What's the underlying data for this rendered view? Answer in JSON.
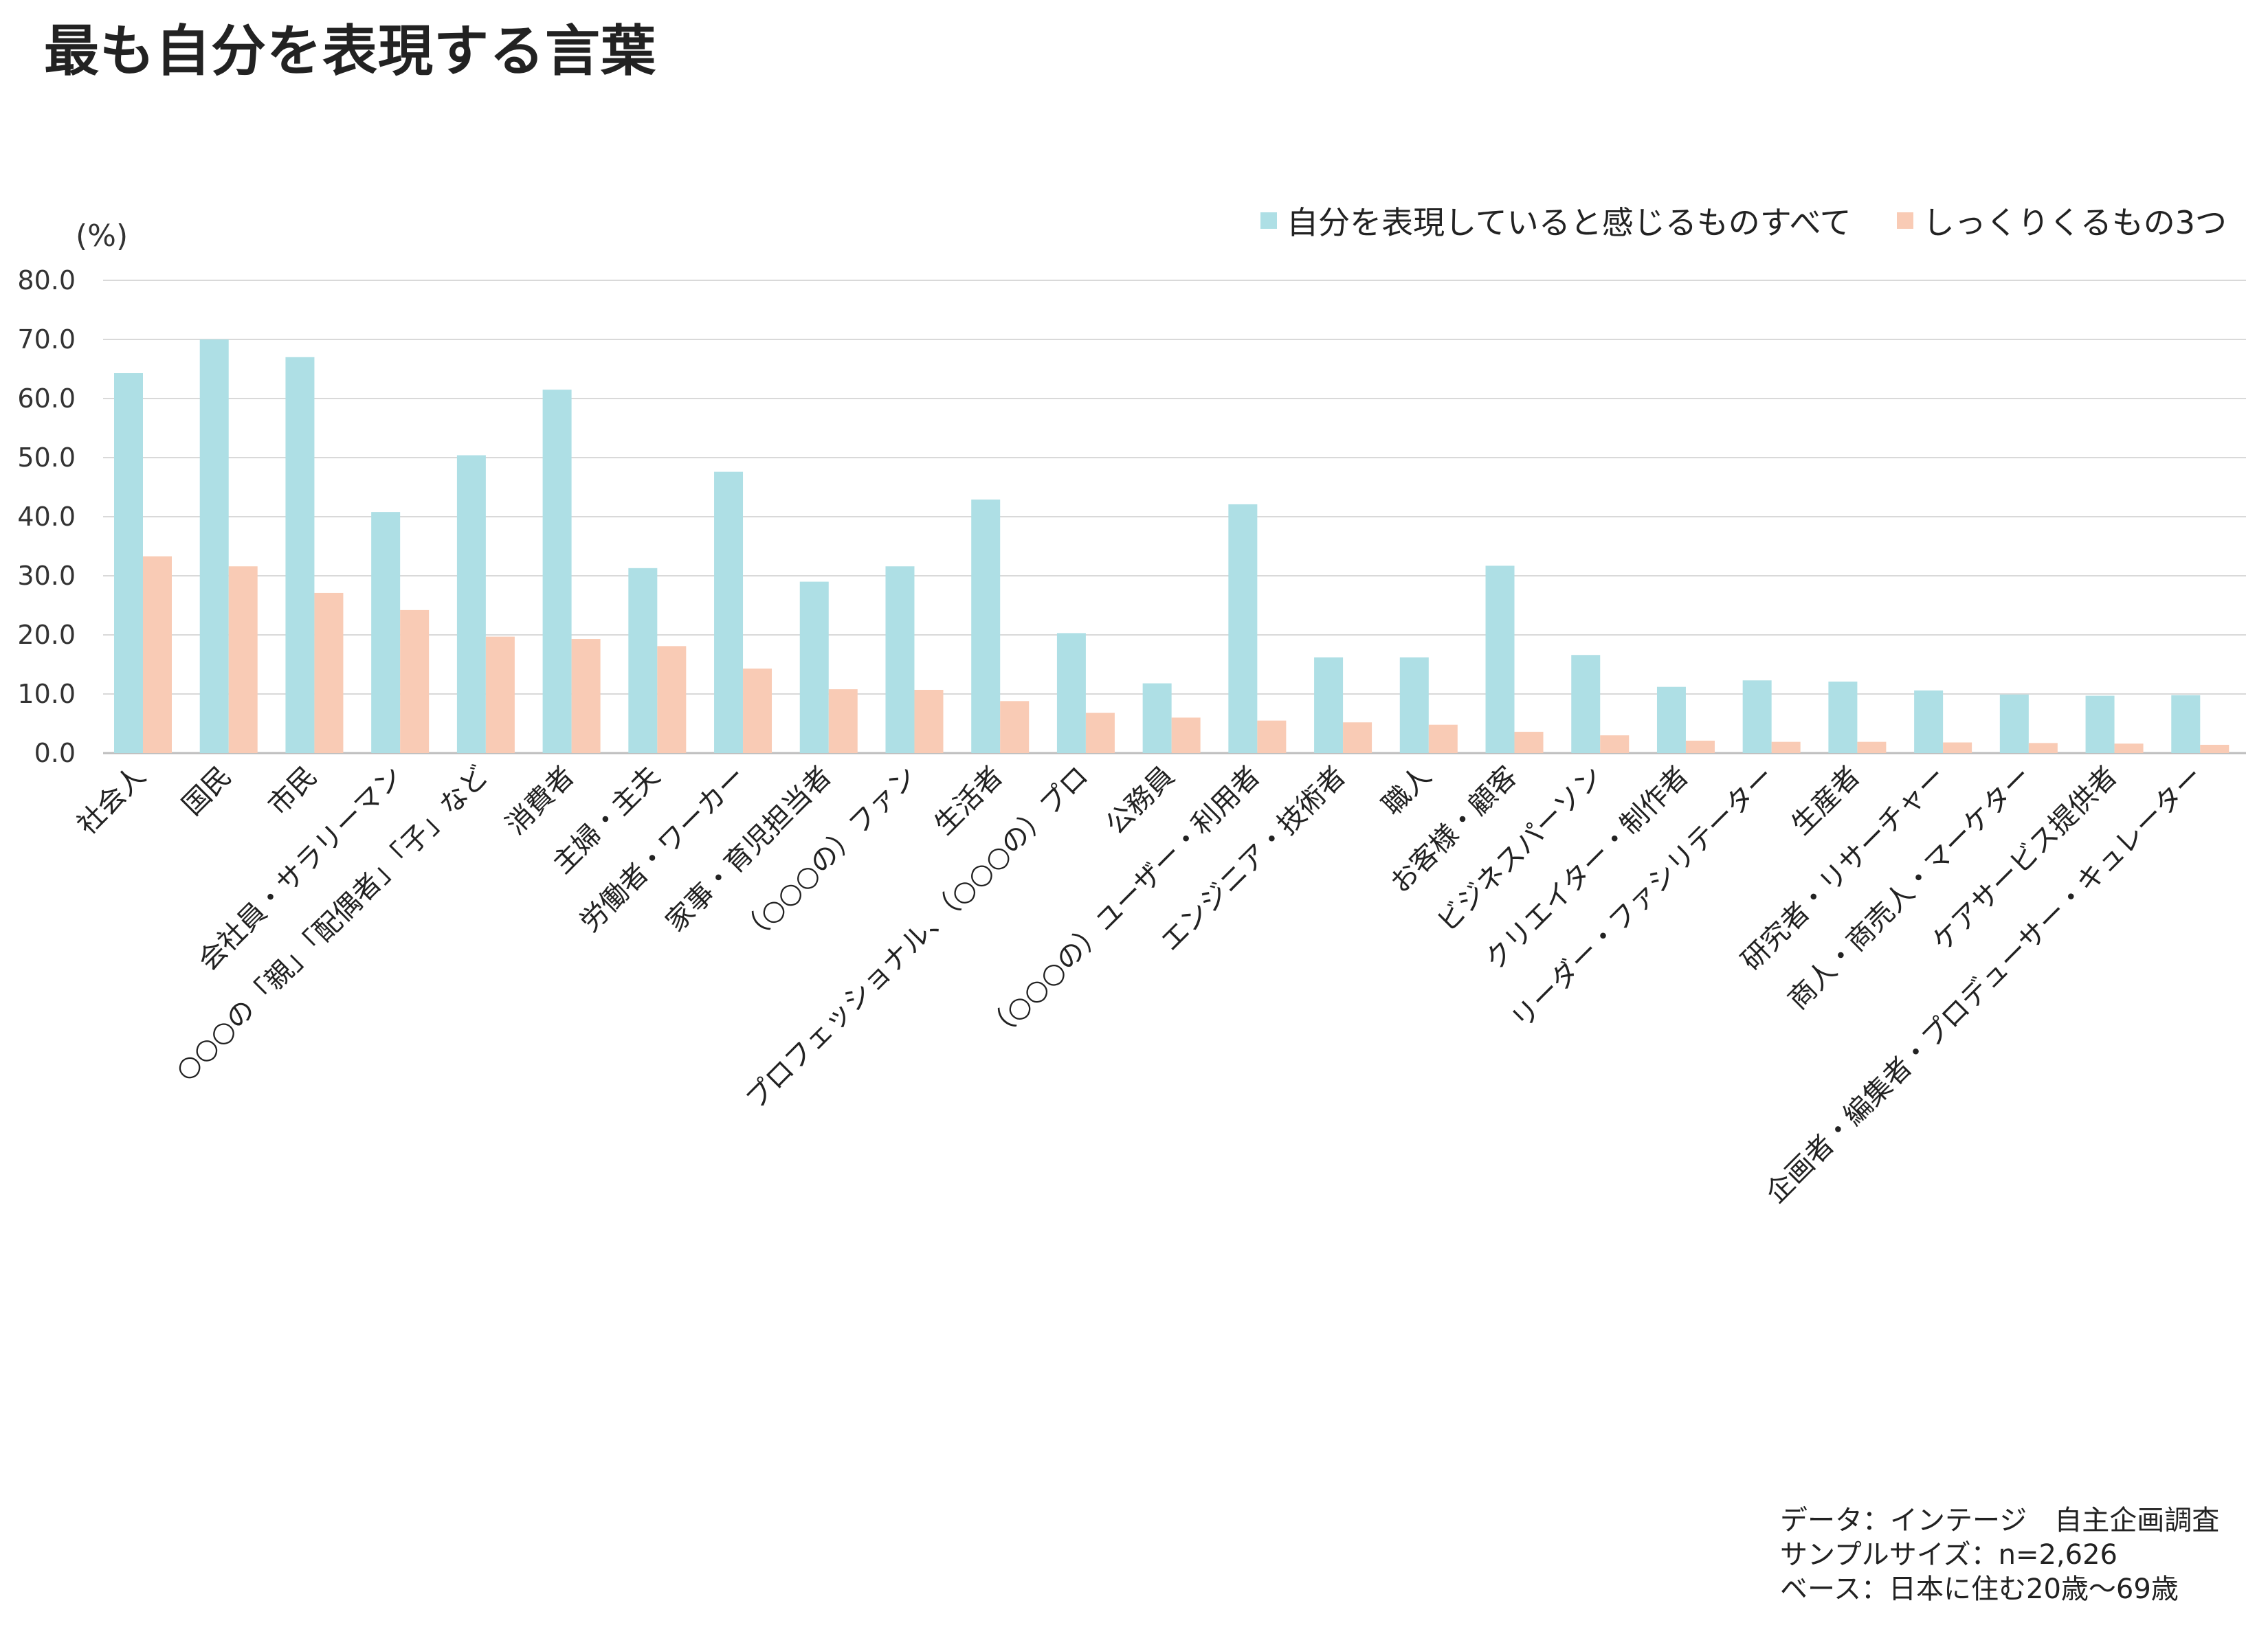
{
  "title": "最も自分を表現する言葉",
  "chart_data": {
    "type": "bar",
    "ylabel": "(%)",
    "ylim": [
      0,
      80
    ],
    "yticks": [
      "0.0",
      "10.0",
      "20.0",
      "30.0",
      "40.0",
      "50.0",
      "60.0",
      "70.0",
      "80.0"
    ],
    "grid": true,
    "legend_position": "top-right",
    "categories": [
      "社会人",
      "国民",
      "市民",
      "会社員・サラリーマン",
      "○○○の「親」「配偶者」「子」など",
      "消費者",
      "主婦・主夫",
      "労働者・ワーカー",
      "家事・育児担当者",
      "（○○○の）ファン",
      "生活者",
      "プロフェッショナル、（○○○の）プロ",
      "公務員",
      "（○○○の）ユーザー・利用者",
      "エンジニア・技術者",
      "職人",
      "お客様・顧客",
      "ビジネスパーソン",
      "クリエイター・制作者",
      "リーダー・ファシリテーター",
      "生産者",
      "研究者・リサーチャー",
      "商人・商売人・マーケター",
      "ケアサービス提供者",
      "企画者・編集者・プロデューサー・キュレーター"
    ],
    "series": [
      {
        "name": "自分を表現していると感じるものすべて",
        "color": "#aedfe5",
        "values": [
          64.3,
          70.0,
          67.0,
          40.8,
          50.4,
          61.5,
          31.3,
          47.6,
          29.0,
          31.6,
          42.9,
          20.3,
          11.8,
          42.1,
          16.2,
          16.2,
          31.7,
          16.6,
          11.2,
          12.3,
          12.1,
          10.6,
          9.9,
          9.7,
          9.8
        ]
      },
      {
        "name": "しっくりくるもの3つ",
        "color": "#f9cbb5",
        "values": [
          33.3,
          31.6,
          27.1,
          24.2,
          19.7,
          19.3,
          18.1,
          14.3,
          10.8,
          10.7,
          8.8,
          6.8,
          6.0,
          5.5,
          5.2,
          4.8,
          3.6,
          3.0,
          2.1,
          1.9,
          1.9,
          1.8,
          1.7,
          1.6,
          1.4
        ]
      }
    ]
  },
  "footer": {
    "line1": "データ：インテージ　自主企画調査",
    "line2": "サンプルサイズ：n=2,626",
    "line3": "ベース：日本に住む20歳〜69歳"
  }
}
